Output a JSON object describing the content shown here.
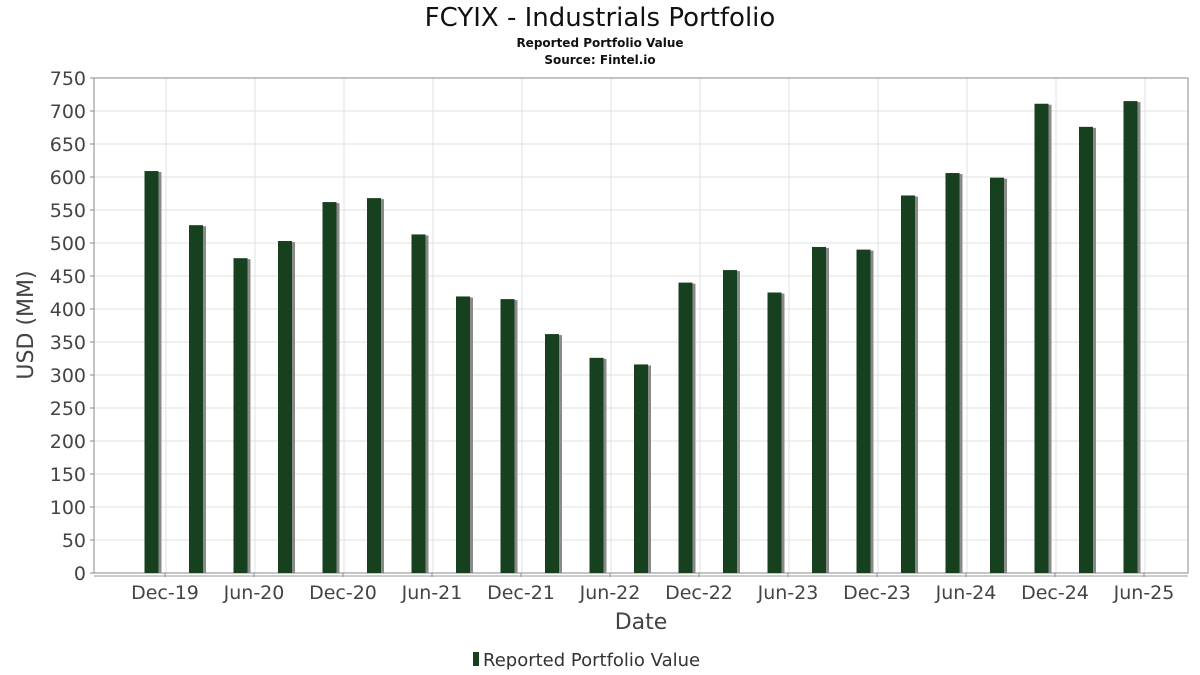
{
  "chart_data": {
    "type": "bar",
    "title": "FCYIX - Industrials Portfolio",
    "subtitles": [
      "Reported Portfolio Value",
      "Source: Fintel.io"
    ],
    "xlabel": "Date",
    "ylabel": "USD (MM)",
    "ylim": [
      0,
      750
    ],
    "yticks": [
      0,
      50,
      100,
      150,
      200,
      250,
      300,
      350,
      400,
      450,
      500,
      550,
      600,
      650,
      700,
      750
    ],
    "xtick_labels": [
      "Dec-19",
      "Jun-20",
      "Dec-20",
      "Jun-21",
      "Dec-21",
      "Jun-22",
      "Dec-22",
      "Jun-23",
      "Dec-23",
      "Jun-24",
      "Dec-24",
      "Jun-25"
    ],
    "grid": true,
    "legend_position": "bottom",
    "colors": {
      "bar": "#17401f",
      "bar_shadow": "#8a8a8a",
      "grid": "#e2e2e2",
      "frame": "#888888"
    },
    "series": [
      {
        "name": "Reported Portfolio Value",
        "values": [
          609,
          527,
          477,
          503,
          562,
          568,
          513,
          419,
          415,
          362,
          326,
          316,
          440,
          459,
          425,
          494,
          490,
          572,
          606,
          599,
          711,
          676,
          715
        ]
      }
    ]
  }
}
